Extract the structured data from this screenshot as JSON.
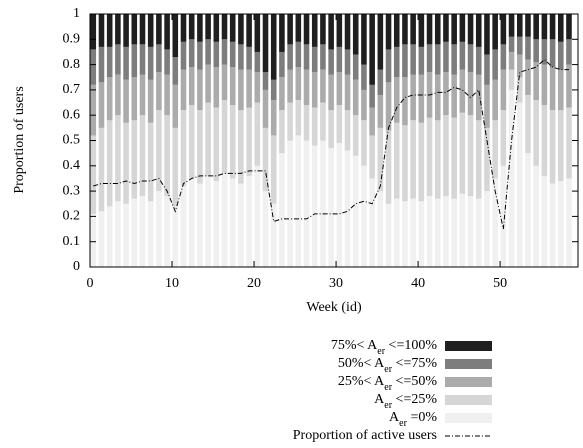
{
  "chart_data": {
    "type": "stacked_bar_line",
    "x_label": "Week (id)",
    "y_label": "Proportion of users",
    "x": [
      0,
      1,
      2,
      3,
      4,
      5,
      6,
      7,
      8,
      9,
      10,
      11,
      12,
      13,
      14,
      15,
      16,
      17,
      18,
      19,
      20,
      21,
      22,
      23,
      24,
      25,
      26,
      27,
      28,
      29,
      30,
      31,
      32,
      33,
      34,
      35,
      36,
      37,
      38,
      39,
      40,
      41,
      42,
      43,
      44,
      45,
      46,
      47,
      48,
      49,
      50,
      51,
      52,
      53,
      54,
      55,
      56,
      57,
      58
    ],
    "xlim": [
      0,
      59.5
    ],
    "xticks": [
      0,
      10,
      20,
      30,
      40,
      50
    ],
    "ylim": [
      0,
      1
    ],
    "yticks": [
      0,
      0.1,
      0.2,
      0.3,
      0.4,
      0.5,
      0.6,
      0.7,
      0.8,
      0.9,
      1
    ],
    "series": [
      {
        "name": "Aer =0%",
        "color": "#f0f0f0",
        "values": [
          0.21,
          0.22,
          0.24,
          0.26,
          0.25,
          0.27,
          0.28,
          0.26,
          0.3,
          0.28,
          0.24,
          0.32,
          0.35,
          0.33,
          0.36,
          0.34,
          0.37,
          0.35,
          0.33,
          0.36,
          0.4,
          0.3,
          0.25,
          0.45,
          0.5,
          0.52,
          0.5,
          0.48,
          0.5,
          0.47,
          0.49,
          0.46,
          0.44,
          0.4,
          0.35,
          0.3,
          0.25,
          0.27,
          0.26,
          0.27,
          0.26,
          0.28,
          0.27,
          0.28,
          0.27,
          0.29,
          0.28,
          0.27,
          0.3,
          0.35,
          0.4,
          0.7,
          0.65,
          0.45,
          0.4,
          0.36,
          0.33,
          0.34,
          0.35
        ]
      },
      {
        "name": "Aer <=25%",
        "color": "#d6d6d6",
        "values": [
          0.31,
          0.33,
          0.34,
          0.34,
          0.32,
          0.31,
          0.32,
          0.31,
          0.32,
          0.32,
          0.31,
          0.3,
          0.29,
          0.29,
          0.29,
          0.29,
          0.29,
          0.29,
          0.29,
          0.27,
          0.25,
          0.25,
          0.27,
          0.17,
          0.15,
          0.14,
          0.14,
          0.15,
          0.15,
          0.15,
          0.15,
          0.16,
          0.16,
          0.18,
          0.17,
          0.25,
          0.29,
          0.3,
          0.3,
          0.31,
          0.31,
          0.31,
          0.31,
          0.32,
          0.32,
          0.32,
          0.32,
          0.31,
          0.25,
          0.23,
          0.22,
          0.08,
          0.1,
          0.23,
          0.26,
          0.28,
          0.29,
          0.28,
          0.28
        ]
      },
      {
        "name": "25%< Aer <=50%",
        "color": "#ababab",
        "values": [
          0.2,
          0.18,
          0.17,
          0.16,
          0.17,
          0.17,
          0.16,
          0.17,
          0.15,
          0.16,
          0.17,
          0.16,
          0.15,
          0.16,
          0.15,
          0.16,
          0.14,
          0.15,
          0.16,
          0.15,
          0.12,
          0.15,
          0.14,
          0.13,
          0.13,
          0.13,
          0.14,
          0.14,
          0.13,
          0.14,
          0.13,
          0.14,
          0.14,
          0.12,
          0.11,
          0.13,
          0.19,
          0.18,
          0.19,
          0.18,
          0.19,
          0.18,
          0.18,
          0.17,
          0.17,
          0.17,
          0.17,
          0.18,
          0.17,
          0.16,
          0.16,
          0.07,
          0.09,
          0.14,
          0.15,
          0.16,
          0.17,
          0.16,
          0.17
        ]
      },
      {
        "name": "50%< Aer <=75%",
        "color": "#7d7d7d",
        "values": [
          0.14,
          0.14,
          0.12,
          0.12,
          0.13,
          0.13,
          0.12,
          0.13,
          0.11,
          0.1,
          0.11,
          0.11,
          0.11,
          0.11,
          0.1,
          0.1,
          0.1,
          0.1,
          0.1,
          0.09,
          0.08,
          0.07,
          0.08,
          0.1,
          0.1,
          0.1,
          0.1,
          0.1,
          0.1,
          0.1,
          0.1,
          0.1,
          0.1,
          0.1,
          0.09,
          0.1,
          0.13,
          0.12,
          0.13,
          0.12,
          0.11,
          0.11,
          0.12,
          0.12,
          0.12,
          0.11,
          0.11,
          0.11,
          0.12,
          0.12,
          0.1,
          0.06,
          0.07,
          0.09,
          0.09,
          0.1,
          0.11,
          0.11,
          0.1
        ]
      },
      {
        "name": "75%< Aer <=100%",
        "color": "#1f1f1f",
        "values": [
          0.14,
          0.13,
          0.13,
          0.12,
          0.13,
          0.12,
          0.12,
          0.13,
          0.12,
          0.14,
          0.17,
          0.11,
          0.1,
          0.11,
          0.1,
          0.11,
          0.1,
          0.11,
          0.12,
          0.13,
          0.15,
          0.23,
          0.26,
          0.15,
          0.12,
          0.11,
          0.12,
          0.13,
          0.12,
          0.14,
          0.13,
          0.14,
          0.16,
          0.2,
          0.28,
          0.22,
          0.14,
          0.13,
          0.12,
          0.12,
          0.13,
          0.12,
          0.12,
          0.11,
          0.12,
          0.11,
          0.12,
          0.13,
          0.16,
          0.14,
          0.12,
          0.09,
          0.09,
          0.09,
          0.1,
          0.1,
          0.1,
          0.11,
          0.1
        ]
      }
    ],
    "line": {
      "name": "Proportion of active users",
      "color": "#000000",
      "values": [
        0.32,
        0.33,
        0.33,
        0.33,
        0.34,
        0.33,
        0.34,
        0.34,
        0.35,
        0.3,
        0.22,
        0.33,
        0.35,
        0.36,
        0.36,
        0.36,
        0.37,
        0.37,
        0.37,
        0.38,
        0.38,
        0.38,
        0.18,
        0.19,
        0.19,
        0.19,
        0.19,
        0.21,
        0.21,
        0.21,
        0.21,
        0.22,
        0.25,
        0.26,
        0.25,
        0.32,
        0.55,
        0.63,
        0.67,
        0.68,
        0.68,
        0.68,
        0.69,
        0.69,
        0.71,
        0.7,
        0.67,
        0.7,
        0.5,
        0.3,
        0.15,
        0.5,
        0.77,
        0.78,
        0.79,
        0.82,
        0.79,
        0.78,
        0.78
      ]
    }
  }
}
